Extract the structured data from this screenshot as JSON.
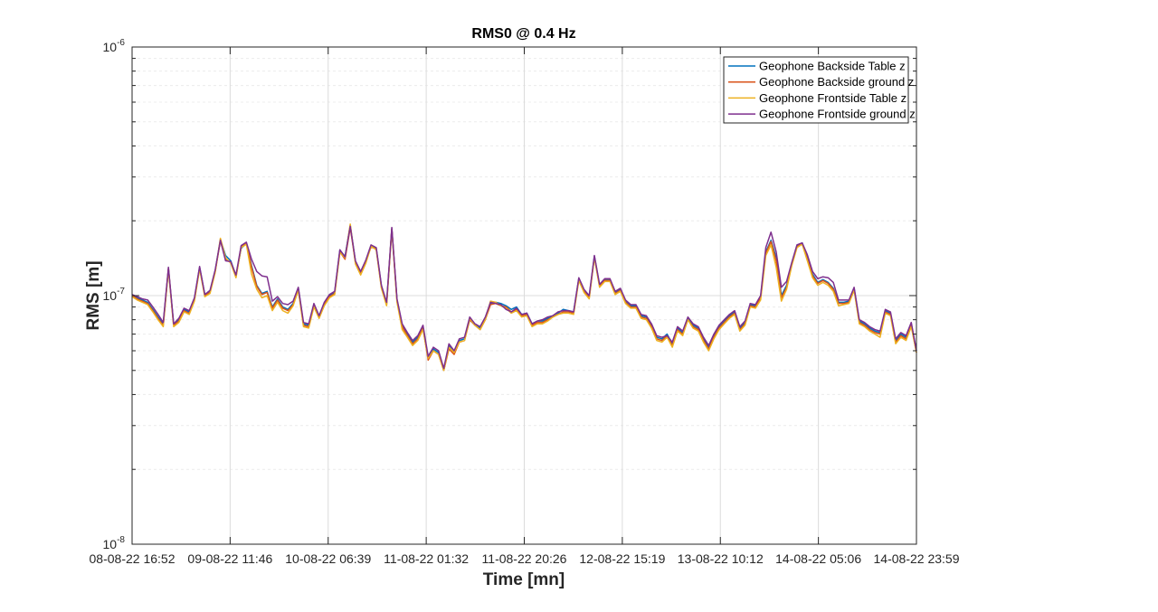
{
  "chart_data": {
    "type": "line",
    "title": "RMS0 @ 0.4 Hz",
    "xlabel": "Time [mn]",
    "ylabel": "RMS [m]",
    "yscale": "log",
    "ylim": [
      1e-08,
      1e-06
    ],
    "y_tick_values": [
      1e-08,
      1e-07,
      1e-06
    ],
    "y_tick_labels": [
      {
        "base": "10",
        "exp": "-8"
      },
      {
        "base": "10",
        "exp": "-7"
      },
      {
        "base": "10",
        "exp": "-6"
      }
    ],
    "xlim": [
      "08-08-22 16:52",
      "14-08-22 23:59"
    ],
    "x_tick_labels": [
      "08-08-22 16:52",
      "09-08-22 11:46",
      "10-08-22 06:39",
      "11-08-22 01:32",
      "11-08-22 20:26",
      "12-08-22 15:19",
      "13-08-22 10:12",
      "14-08-22 05:06",
      "14-08-22 23:59"
    ],
    "grid": true,
    "legend_position": "top-right",
    "series": [
      {
        "name": "Geophone Backside Table z",
        "color": "#0072BD",
        "values": [
          1e-07,
          9.8e-08,
          9.6e-08,
          9.4e-08,
          8.8e-08,
          8.2e-08,
          7.7e-08,
          1.28e-07,
          7.7e-08,
          8e-08,
          8.8e-08,
          8.6e-08,
          9.7e-08,
          1.3e-07,
          1.01e-07,
          1.04e-07,
          1.26e-07,
          1.68e-07,
          1.45e-07,
          1.38e-07,
          1.2e-07,
          1.55e-07,
          1.62e-07,
          1.32e-07,
          1.1e-07,
          1.02e-07,
          1.04e-07,
          9e-08,
          9.7e-08,
          9e-08,
          8.8e-08,
          9.3e-08,
          1.07e-07,
          7.7e-08,
          7.6e-08,
          9.2e-08,
          8.3e-08,
          9.3e-08,
          1e-07,
          1.03e-07,
          1.52e-07,
          1.44e-07,
          1.92e-07,
          1.37e-07,
          1.24e-07,
          1.38e-07,
          1.58e-07,
          1.55e-07,
          1.09e-07,
          9.3e-08,
          1.86e-07,
          9.6e-08,
          7.6e-08,
          7e-08,
          6.5e-08,
          6.8e-08,
          7.5e-08,
          5.6e-08,
          6.1e-08,
          5.9e-08,
          5e-08,
          6.3e-08,
          6e-08,
          6.6e-08,
          6.7e-08,
          8e-08,
          7.6e-08,
          7.4e-08,
          8.1e-08,
          9.3e-08,
          9.4e-08,
          9.3e-08,
          9.1e-08,
          8.8e-08,
          9e-08,
          8.4e-08,
          8.5e-08,
          7.7e-08,
          7.9e-08,
          7.9e-08,
          8.1e-08,
          8.3e-08,
          8.5e-08,
          8.8e-08,
          8.7e-08,
          8.6e-08,
          1.17e-07,
          1.05e-07,
          9.9e-08,
          1.44e-07,
          1.1e-07,
          1.16e-07,
          1.16e-07,
          1.03e-07,
          1.06e-07,
          9.5e-08,
          9.1e-08,
          9.1e-08,
          8.3e-08,
          8.2e-08,
          7.6e-08,
          6.8e-08,
          6.7e-08,
          7e-08,
          6.4e-08,
          7.4e-08,
          7.1e-08,
          8.1e-08,
          7.6e-08,
          7.4e-08,
          6.7e-08,
          6.2e-08,
          6.9e-08,
          7.5e-08,
          7.9e-08,
          8.3e-08,
          8.6e-08,
          7.4e-08,
          7.8e-08,
          9.2e-08,
          9.1e-08,
          9.9e-08,
          1.5e-07,
          1.67e-07,
          1.42e-07,
          1e-07,
          1.1e-07,
          1.34e-07,
          1.58e-07,
          1.63e-07,
          1.42e-07,
          1.22e-07,
          1.13e-07,
          1.16e-07,
          1.13e-07,
          1.07e-07,
          9.4e-08,
          9.4e-08,
          9.5e-08,
          1.07e-07,
          7.9e-08,
          7.7e-08,
          7.4e-08,
          7.2e-08,
          7.1e-08,
          8.7e-08,
          8.5e-08,
          6.6e-08,
          7e-08,
          6.8e-08,
          7.7e-08,
          6e-08
        ]
      },
      {
        "name": "Geophone Backside ground z",
        "color": "#D95319",
        "values": [
          1e-07,
          9.7e-08,
          9.5e-08,
          9.3e-08,
          8.7e-08,
          8.1e-08,
          7.6e-08,
          1.29e-07,
          7.6e-08,
          7.9e-08,
          8.7e-08,
          8.5e-08,
          9.6e-08,
          1.29e-07,
          1e-07,
          1.03e-07,
          1.25e-07,
          1.66e-07,
          1.4e-07,
          1.36e-07,
          1.19e-07,
          1.58e-07,
          1.63e-07,
          1.3e-07,
          1.09e-07,
          1.01e-07,
          1.03e-07,
          8.9e-08,
          9.6e-08,
          8.9e-08,
          8.7e-08,
          9.2e-08,
          1.06e-07,
          7.6e-08,
          7.5e-08,
          9.1e-08,
          8.2e-08,
          9.2e-08,
          9.9e-08,
          1.02e-07,
          1.5e-07,
          1.4e-07,
          1.88e-07,
          1.36e-07,
          1.22e-07,
          1.37e-07,
          1.57e-07,
          1.54e-07,
          1.08e-07,
          9.2e-08,
          1.86e-07,
          9.5e-08,
          7.5e-08,
          6.9e-08,
          6.4e-08,
          6.7e-08,
          7.4e-08,
          5.5e-08,
          6e-08,
          5.8e-08,
          5e-08,
          6.1e-08,
          5.8e-08,
          6.5e-08,
          6.6e-08,
          8e-08,
          7.6e-08,
          7.3e-08,
          8e-08,
          9.2e-08,
          9.3e-08,
          9.1e-08,
          9e-08,
          8.6e-08,
          8.8e-08,
          8.3e-08,
          8.4e-08,
          7.6e-08,
          7.8e-08,
          7.8e-08,
          8e-08,
          8.2e-08,
          8.4e-08,
          8.6e-08,
          8.6e-08,
          8.5e-08,
          1.16e-07,
          1.04e-07,
          9.8e-08,
          1.43e-07,
          1.09e-07,
          1.15e-07,
          1.15e-07,
          1.02e-07,
          1.05e-07,
          9.4e-08,
          9e-08,
          9e-08,
          8.2e-08,
          8.1e-08,
          7.5e-08,
          6.7e-08,
          6.6e-08,
          6.9e-08,
          6.3e-08,
          7.3e-08,
          7e-08,
          8e-08,
          7.5e-08,
          7.3e-08,
          6.6e-08,
          6.1e-08,
          6.8e-08,
          7.4e-08,
          7.8e-08,
          8.2e-08,
          8.5e-08,
          7.3e-08,
          7.7e-08,
          9.1e-08,
          9e-08,
          9.8e-08,
          1.48e-07,
          1.65e-07,
          1.38e-07,
          9.8e-08,
          1.08e-07,
          1.33e-07,
          1.57e-07,
          1.62e-07,
          1.4e-07,
          1.2e-07,
          1.12e-07,
          1.15e-07,
          1.12e-07,
          1.06e-07,
          9.3e-08,
          9.3e-08,
          9.4e-08,
          1.06e-07,
          7.8e-08,
          7.6e-08,
          7.3e-08,
          7.1e-08,
          7e-08,
          8.6e-08,
          8.4e-08,
          6.5e-08,
          6.9e-08,
          6.7e-08,
          7.6e-08,
          5.9e-08
        ]
      },
      {
        "name": "Geophone Frontside Table z",
        "color": "#EDB120",
        "values": [
          9.9e-08,
          9.6e-08,
          9.4e-08,
          9.2e-08,
          8.6e-08,
          8e-08,
          7.5e-08,
          1.27e-07,
          7.5e-08,
          7.8e-08,
          8.6e-08,
          8.4e-08,
          9.5e-08,
          1.28e-07,
          9.9e-08,
          1.02e-07,
          1.24e-07,
          1.7e-07,
          1.42e-07,
          1.35e-07,
          1.18e-07,
          1.56e-07,
          1.61e-07,
          1.22e-07,
          1.06e-07,
          9.8e-08,
          1e-07,
          8.7e-08,
          9.4e-08,
          8.7e-08,
          8.5e-08,
          9.1e-08,
          1.05e-07,
          7.5e-08,
          7.4e-08,
          9e-08,
          8.1e-08,
          9.1e-08,
          9.8e-08,
          1.01e-07,
          1.49e-07,
          1.42e-07,
          1.94e-07,
          1.34e-07,
          1.21e-07,
          1.35e-07,
          1.58e-07,
          1.53e-07,
          1.07e-07,
          9.1e-08,
          1.85e-07,
          9.4e-08,
          7.3e-08,
          6.8e-08,
          6.3e-08,
          6.6e-08,
          7.3e-08,
          5.6e-08,
          6e-08,
          5.8e-08,
          5e-08,
          6.2e-08,
          5.9e-08,
          6.5e-08,
          6.6e-08,
          8.1e-08,
          7.6e-08,
          7.3e-08,
          8e-08,
          9.5e-08,
          9.4e-08,
          9.1e-08,
          8.9e-08,
          8.5e-08,
          8.7e-08,
          8.2e-08,
          8.3e-08,
          7.5e-08,
          7.7e-08,
          7.7e-08,
          7.9e-08,
          8.2e-08,
          8.4e-08,
          8.5e-08,
          8.5e-08,
          8.4e-08,
          1.15e-07,
          1.03e-07,
          9.7e-08,
          1.42e-07,
          1.08e-07,
          1.14e-07,
          1.14e-07,
          1.01e-07,
          1.04e-07,
          9.3e-08,
          8.9e-08,
          8.9e-08,
          8.1e-08,
          8e-08,
          7.4e-08,
          6.6e-08,
          6.5e-08,
          6.8e-08,
          6.2e-08,
          7.2e-08,
          6.9e-08,
          8e-08,
          7.4e-08,
          7.2e-08,
          6.5e-08,
          6e-08,
          6.7e-08,
          7.3e-08,
          7.7e-08,
          8.1e-08,
          8.4e-08,
          7.2e-08,
          7.6e-08,
          9e-08,
          8.9e-08,
          9.6e-08,
          1.45e-07,
          1.6e-07,
          1.3e-07,
          9.5e-08,
          1.06e-07,
          1.32e-07,
          1.56e-07,
          1.61e-07,
          1.38e-07,
          1.18e-07,
          1.1e-07,
          1.13e-07,
          1.1e-07,
          1.04e-07,
          9.1e-08,
          9.2e-08,
          9.3e-08,
          1.05e-07,
          7.7e-08,
          7.5e-08,
          7.2e-08,
          7e-08,
          6.8e-08,
          8.5e-08,
          8.3e-08,
          6.4e-08,
          6.8e-08,
          6.6e-08,
          7.5e-08,
          5.9e-08
        ]
      },
      {
        "name": "Geophone Frontside ground z",
        "color": "#7E2F8E",
        "values": [
          1.01e-07,
          9.9e-08,
          9.7e-08,
          9.6e-08,
          9e-08,
          8.4e-08,
          7.8e-08,
          1.3e-07,
          7.7e-08,
          8.1e-08,
          8.9e-08,
          8.7e-08,
          9.8e-08,
          1.31e-07,
          1.01e-07,
          1.05e-07,
          1.27e-07,
          1.67e-07,
          1.38e-07,
          1.37e-07,
          1.21e-07,
          1.59e-07,
          1.64e-07,
          1.4e-07,
          1.25e-07,
          1.2e-07,
          1.19e-07,
          9.5e-08,
          9.9e-08,
          9.3e-08,
          9.2e-08,
          9.5e-08,
          1.08e-07,
          7.8e-08,
          7.7e-08,
          9.3e-08,
          8.3e-08,
          9.4e-08,
          1.01e-07,
          1.04e-07,
          1.53e-07,
          1.43e-07,
          1.9e-07,
          1.38e-07,
          1.25e-07,
          1.39e-07,
          1.6e-07,
          1.56e-07,
          1.1e-07,
          9.4e-08,
          1.88e-07,
          9.7e-08,
          7.7e-08,
          7.1e-08,
          6.6e-08,
          6.9e-08,
          7.6e-08,
          5.7e-08,
          6.2e-08,
          6e-08,
          5.1e-08,
          6.4e-08,
          6e-08,
          6.7e-08,
          6.8e-08,
          8.2e-08,
          7.7e-08,
          7.5e-08,
          8.2e-08,
          9.4e-08,
          9.3e-08,
          9.2e-08,
          8.8e-08,
          8.6e-08,
          8.9e-08,
          8.4e-08,
          8.5e-08,
          7.7e-08,
          7.9e-08,
          8e-08,
          8.2e-08,
          8.3e-08,
          8.6e-08,
          8.7e-08,
          8.7e-08,
          8.6e-08,
          1.18e-07,
          1.06e-07,
          1e-07,
          1.45e-07,
          1.11e-07,
          1.17e-07,
          1.17e-07,
          1.04e-07,
          1.07e-07,
          9.6e-08,
          9.2e-08,
          9.2e-08,
          8.4e-08,
          8.3e-08,
          7.7e-08,
          6.9e-08,
          6.8e-08,
          6.9e-08,
          6.5e-08,
          7.5e-08,
          7.2e-08,
          8.2e-08,
          7.7e-08,
          7.5e-08,
          6.8e-08,
          6.3e-08,
          7e-08,
          7.6e-08,
          8e-08,
          8.4e-08,
          8.7e-08,
          7.5e-08,
          7.9e-08,
          9.3e-08,
          9.2e-08,
          1e-07,
          1.56e-07,
          1.8e-07,
          1.5e-07,
          1.08e-07,
          1.14e-07,
          1.36e-07,
          1.6e-07,
          1.63e-07,
          1.46e-07,
          1.25e-07,
          1.17e-07,
          1.19e-07,
          1.18e-07,
          1.13e-07,
          9.6e-08,
          9.6e-08,
          9.6e-08,
          1.08e-07,
          8e-08,
          7.8e-08,
          7.5e-08,
          7.3e-08,
          7.2e-08,
          8.8e-08,
          8.6e-08,
          6.7e-08,
          7.1e-08,
          6.9e-08,
          7.8e-08,
          6e-08
        ]
      }
    ]
  }
}
